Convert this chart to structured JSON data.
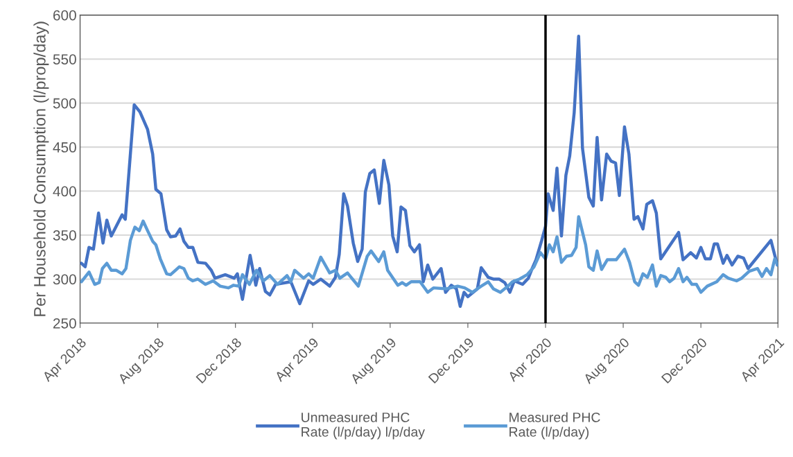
{
  "chart_data": {
    "type": "line",
    "ylabel": "Per Household Consumption (l/prop/day)",
    "xlim": [
      "2018-04-01",
      "2021-04-01"
    ],
    "ylim": [
      250,
      600
    ],
    "yticks": [
      250,
      300,
      350,
      400,
      450,
      500,
      550,
      600
    ],
    "xticks": [
      {
        "value": "2018-04-01",
        "label": "Apr 2018"
      },
      {
        "value": "2018-08-01",
        "label": "Aug 2018"
      },
      {
        "value": "2018-12-01",
        "label": "Dec 2018"
      },
      {
        "value": "2019-04-01",
        "label": "Apr 2019"
      },
      {
        "value": "2019-08-01",
        "label": "Aug 2019"
      },
      {
        "value": "2019-12-01",
        "label": "Dec 2019"
      },
      {
        "value": "2020-04-01",
        "label": "Apr 2020"
      },
      {
        "value": "2020-08-01",
        "label": "Aug 2020"
      },
      {
        "value": "2020-12-01",
        "label": "Dec 2020"
      },
      {
        "value": "2021-04-01",
        "label": "Apr 2021"
      }
    ],
    "grid": "y",
    "legend": "bottom",
    "marker": "none",
    "line_style": "solid",
    "ref_lines": [
      {
        "axis": "x",
        "value": "2020-04-01",
        "color": "#000000",
        "line_style": "solid"
      }
    ],
    "series": [
      {
        "name": "Unmeasured PHC\nRate (l/p/day) l/p/day",
        "color": "#4472c4",
        "x": [
          "2018-04-03",
          "2018-04-09",
          "2018-04-15",
          "2018-04-22",
          "2018-04-30",
          "2018-05-07",
          "2018-05-13",
          "2018-05-20",
          "2018-06-06",
          "2018-06-11",
          "2018-06-25",
          "2018-07-04",
          "2018-07-16",
          "2018-07-24",
          "2018-07-29",
          "2018-08-06",
          "2018-08-15",
          "2018-08-21",
          "2018-08-29",
          "2018-09-05",
          "2018-09-11",
          "2018-09-18",
          "2018-09-25",
          "2018-10-03",
          "2018-10-15",
          "2018-10-24",
          "2018-10-30",
          "2018-11-15",
          "2018-11-29",
          "2018-12-04",
          "2018-12-12",
          "2018-12-24",
          "2019-01-02",
          "2019-01-08",
          "2019-01-17",
          "2019-01-24",
          "2019-02-02",
          "2019-02-26",
          "2019-03-12",
          "2019-03-26",
          "2019-04-02",
          "2019-04-14",
          "2019-04-21",
          "2019-04-28",
          "2019-05-07",
          "2019-05-13",
          "2019-05-20",
          "2019-05-26",
          "2019-06-04",
          "2019-06-11",
          "2019-06-18",
          "2019-06-23",
          "2019-06-30",
          "2019-07-07",
          "2019-07-15",
          "2019-07-22",
          "2019-07-30",
          "2019-08-05",
          "2019-08-12",
          "2019-08-18",
          "2019-08-25",
          "2019-09-01",
          "2019-09-08",
          "2019-09-16",
          "2019-09-22",
          "2019-09-29",
          "2019-10-07",
          "2019-10-20",
          "2019-10-27",
          "2019-11-05",
          "2019-11-13",
          "2019-11-19",
          "2019-11-25",
          "2019-12-01",
          "2019-12-16",
          "2019-12-22",
          "2020-01-02",
          "2020-01-10",
          "2020-01-19",
          "2020-01-28",
          "2020-02-05",
          "2020-02-12",
          "2020-02-25",
          "2020-03-05",
          "2020-03-11",
          "2020-03-17",
          "2020-03-26",
          "2020-04-01",
          "2020-04-05",
          "2020-04-13",
          "2020-04-19",
          "2020-04-26",
          "2020-05-03",
          "2020-05-09",
          "2020-05-16",
          "2020-05-23",
          "2020-05-29",
          "2020-06-08",
          "2020-06-15",
          "2020-06-21",
          "2020-06-28",
          "2020-07-06",
          "2020-07-13",
          "2020-07-20",
          "2020-07-26",
          "2020-08-03",
          "2020-08-10",
          "2020-08-18",
          "2020-08-24",
          "2020-09-01",
          "2020-09-07",
          "2020-09-16",
          "2020-09-22",
          "2020-09-29",
          "2020-10-27",
          "2020-11-03",
          "2020-11-15",
          "2020-11-24",
          "2020-12-01",
          "2020-12-08",
          "2020-12-16",
          "2020-12-22",
          "2020-12-27",
          "2021-01-05",
          "2021-01-11",
          "2021-01-19",
          "2021-01-28",
          "2021-02-06",
          "2021-02-13",
          "2021-03-21",
          "2021-03-31"
        ],
        "values": [
          318,
          314,
          336,
          334,
          375,
          341,
          367,
          349,
          373,
          368,
          498,
          490,
          470,
          442,
          402,
          397,
          356,
          348,
          349,
          357,
          343,
          336,
          336,
          319,
          318,
          310,
          301,
          305,
          301,
          306,
          277,
          327,
          293,
          312,
          286,
          282,
          294,
          297,
          272,
          298,
          294,
          300,
          296,
          292,
          302,
          328,
          397,
          383,
          341,
          320,
          334,
          399,
          420,
          424,
          386,
          435,
          407,
          349,
          331,
          382,
          378,
          338,
          331,
          339,
          297,
          316,
          300,
          312,
          285,
          293,
          289,
          269,
          285,
          280,
          289,
          313,
          302,
          300,
          300,
          296,
          285,
          298,
          294,
          301,
          312,
          322,
          344,
          360,
          397,
          378,
          426,
          349,
          418,
          440,
          489,
          576,
          449,
          393,
          383,
          461,
          390,
          442,
          434,
          432,
          395,
          473,
          442,
          368,
          371,
          357,
          385,
          389,
          375,
          323,
          353,
          322,
          330,
          324,
          336,
          323,
          323,
          340,
          340,
          318,
          327,
          316,
          326,
          324,
          312,
          344,
          316
        ]
      },
      {
        "name": "Measured PHC\nRate (l/p/day)",
        "color": "#5b9bd5",
        "x": [
          "2018-04-03",
          "2018-04-15",
          "2018-04-24",
          "2018-05-01",
          "2018-05-06",
          "2018-05-13",
          "2018-05-20",
          "2018-05-28",
          "2018-06-06",
          "2018-06-12",
          "2018-06-19",
          "2018-06-26",
          "2018-07-03",
          "2018-07-09",
          "2018-07-16",
          "2018-07-24",
          "2018-07-29",
          "2018-08-05",
          "2018-08-15",
          "2018-08-21",
          "2018-09-04",
          "2018-09-11",
          "2018-09-18",
          "2018-09-25",
          "2018-10-03",
          "2018-10-15",
          "2018-10-27",
          "2018-11-07",
          "2018-11-20",
          "2018-11-28",
          "2018-12-06",
          "2018-12-12",
          "2018-12-23",
          "2019-01-03",
          "2019-01-14",
          "2019-01-24",
          "2019-02-05",
          "2019-02-20",
          "2019-02-26",
          "2019-03-04",
          "2019-03-18",
          "2019-03-26",
          "2019-04-02",
          "2019-04-14",
          "2019-04-28",
          "2019-05-07",
          "2019-05-14",
          "2019-05-26",
          "2019-06-12",
          "2019-06-26",
          "2019-07-02",
          "2019-07-14",
          "2019-07-22",
          "2019-07-28",
          "2019-08-13",
          "2019-08-20",
          "2019-08-26",
          "2019-09-03",
          "2019-09-17",
          "2019-09-29",
          "2019-10-08",
          "2019-10-29",
          "2019-11-15",
          "2019-11-26",
          "2019-12-08",
          "2019-12-22",
          "2020-01-02",
          "2020-01-10",
          "2020-01-21",
          "2020-02-02",
          "2020-02-09",
          "2020-02-20",
          "2020-03-03",
          "2020-03-14",
          "2020-03-24",
          "2020-04-01",
          "2020-04-07",
          "2020-04-13",
          "2020-04-19",
          "2020-04-26",
          "2020-05-04",
          "2020-05-12",
          "2020-05-19",
          "2020-05-23",
          "2020-06-03",
          "2020-06-08",
          "2020-06-15",
          "2020-06-21",
          "2020-06-28",
          "2020-07-07",
          "2020-07-21",
          "2020-08-03",
          "2020-08-11",
          "2020-08-19",
          "2020-08-25",
          "2020-09-01",
          "2020-09-08",
          "2020-09-16",
          "2020-09-22",
          "2020-09-29",
          "2020-10-07",
          "2020-10-13",
          "2020-10-20",
          "2020-10-27",
          "2020-11-03",
          "2020-11-09",
          "2020-11-17",
          "2020-11-24",
          "2020-12-01",
          "2020-12-11",
          "2020-12-26",
          "2021-01-05",
          "2021-01-13",
          "2021-01-26",
          "2021-02-03",
          "2021-02-15",
          "2021-02-28",
          "2021-03-07",
          "2021-03-14",
          "2021-03-21",
          "2021-03-27",
          "2021-04-01"
        ],
        "values": [
          297,
          308,
          294,
          296,
          312,
          318,
          310,
          310,
          306,
          312,
          344,
          359,
          355,
          366,
          355,
          343,
          339,
          323,
          306,
          305,
          314,
          312,
          301,
          298,
          300,
          294,
          298,
          292,
          290,
          293,
          292,
          305,
          294,
          310,
          298,
          304,
          294,
          304,
          297,
          310,
          301,
          306,
          301,
          325,
          307,
          310,
          301,
          307,
          292,
          326,
          332,
          320,
          331,
          310,
          293,
          296,
          293,
          297,
          297,
          285,
          290,
          289,
          292,
          290,
          285,
          292,
          297,
          289,
          285,
          292,
          297,
          300,
          305,
          314,
          330,
          323,
          339,
          331,
          348,
          319,
          326,
          327,
          336,
          371,
          339,
          314,
          310,
          332,
          311,
          322,
          322,
          334,
          319,
          297,
          293,
          306,
          302,
          316,
          292,
          304,
          302,
          297,
          301,
          312,
          297,
          302,
          294,
          294,
          285,
          292,
          297,
          305,
          301,
          298,
          301,
          309,
          312,
          303,
          312,
          305,
          323,
          316
        ]
      }
    ]
  }
}
